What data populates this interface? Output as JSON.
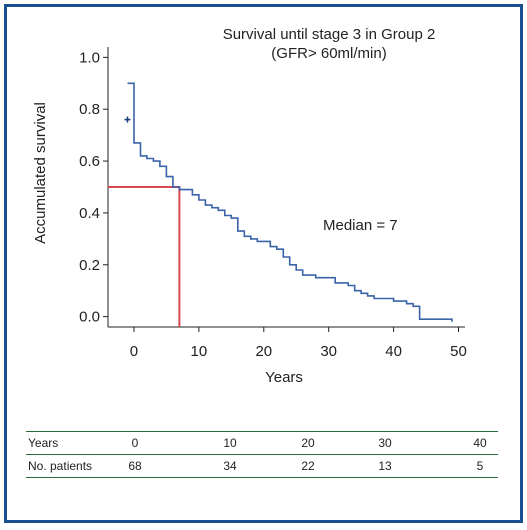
{
  "chart_data": {
    "type": "line",
    "title": [
      "Survival until stage 3 in Group 2",
      "(GFR> 60ml/min)"
    ],
    "xlabel": "Years",
    "ylabel": "Accumulated survival",
    "xlim": [
      -4,
      51
    ],
    "ylim": [
      -0.04,
      1.04
    ],
    "xticks": [
      0,
      10,
      20,
      30,
      40,
      50
    ],
    "yticks": [
      0.0,
      0.2,
      0.4,
      0.6,
      0.8,
      1.0
    ],
    "yticklabels": [
      "0.0",
      "0.2",
      "0.4",
      "0.6",
      "0.8",
      "1.0"
    ],
    "grid": false,
    "series": [
      {
        "color": "#3a63a8",
        "step": true,
        "points": [
          [
            -1,
            0.9
          ],
          [
            0,
            0.9
          ],
          [
            0,
            0.67
          ],
          [
            1,
            0.67
          ],
          [
            1,
            0.62
          ],
          [
            2,
            0.62
          ],
          [
            2,
            0.61
          ],
          [
            3,
            0.61
          ],
          [
            3,
            0.6
          ],
          [
            4,
            0.6
          ],
          [
            4,
            0.58
          ],
          [
            5,
            0.58
          ],
          [
            5,
            0.54
          ],
          [
            6,
            0.54
          ],
          [
            6,
            0.5
          ],
          [
            7,
            0.5
          ],
          [
            7,
            0.49
          ],
          [
            9,
            0.49
          ],
          [
            9,
            0.47
          ],
          [
            10,
            0.47
          ],
          [
            10,
            0.45
          ],
          [
            11,
            0.45
          ],
          [
            11,
            0.43
          ],
          [
            12,
            0.43
          ],
          [
            12,
            0.42
          ],
          [
            13,
            0.42
          ],
          [
            13,
            0.41
          ],
          [
            14,
            0.41
          ],
          [
            14,
            0.39
          ],
          [
            15,
            0.39
          ],
          [
            15,
            0.38
          ],
          [
            16,
            0.38
          ],
          [
            16,
            0.33
          ],
          [
            17,
            0.33
          ],
          [
            17,
            0.31
          ],
          [
            18,
            0.31
          ],
          [
            18,
            0.3
          ],
          [
            19,
            0.3
          ],
          [
            19,
            0.29
          ],
          [
            21,
            0.29
          ],
          [
            21,
            0.27
          ],
          [
            22,
            0.27
          ],
          [
            22,
            0.26
          ],
          [
            23,
            0.26
          ],
          [
            23,
            0.23
          ],
          [
            24,
            0.23
          ],
          [
            24,
            0.2
          ],
          [
            25,
            0.2
          ],
          [
            25,
            0.18
          ],
          [
            26,
            0.18
          ],
          [
            26,
            0.16
          ],
          [
            28,
            0.16
          ],
          [
            28,
            0.15
          ],
          [
            31,
            0.15
          ],
          [
            31,
            0.13
          ],
          [
            33,
            0.13
          ],
          [
            33,
            0.12
          ],
          [
            34,
            0.12
          ],
          [
            34,
            0.1
          ],
          [
            35,
            0.1
          ],
          [
            35,
            0.09
          ],
          [
            36,
            0.09
          ],
          [
            36,
            0.08
          ],
          [
            37,
            0.08
          ],
          [
            37,
            0.07
          ],
          [
            40,
            0.07
          ],
          [
            40,
            0.06
          ],
          [
            42,
            0.06
          ],
          [
            42,
            0.05
          ],
          [
            43,
            0.05
          ],
          [
            43,
            0.04
          ],
          [
            44,
            0.04
          ],
          [
            44,
            -0.01
          ],
          [
            49,
            -0.01
          ],
          [
            49,
            -0.02
          ]
        ]
      }
    ],
    "censor_marks": [
      [
        -1,
        0.76
      ]
    ],
    "median": {
      "x": 7,
      "y": 0.5,
      "color": "#d8484f"
    },
    "annotation": "Median = 7"
  },
  "risk_table": {
    "rows": [
      {
        "label": "Years",
        "values": [
          "0",
          "10",
          "20",
          "30",
          "40"
        ]
      },
      {
        "label": "No. patients",
        "values": [
          "68",
          "34",
          "22",
          "13",
          "5"
        ]
      }
    ]
  },
  "colors": {
    "frame": "#1a4f8f",
    "curve": "#3a63a8",
    "median": "#d8484f",
    "table_lines": "#2e6b3a"
  }
}
